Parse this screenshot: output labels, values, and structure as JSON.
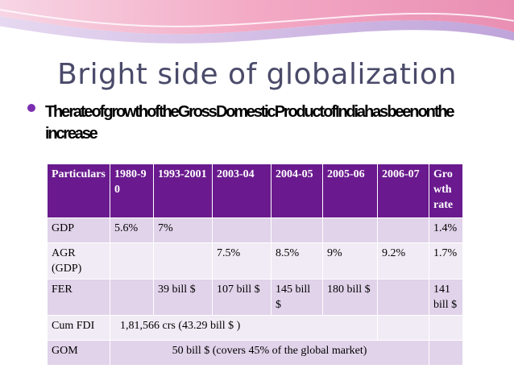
{
  "slide": {
    "title": "Bright side of globalization",
    "bullet": "The rate of growth of the Gross Domestic Product of India has been on the increase"
  },
  "table": {
    "headers": [
      "Particulars",
      "1980-90",
      "1993-2001",
      "2003-04",
      "2004-05",
      "2005-06",
      "2006-07",
      "Growth rate"
    ],
    "rows": [
      {
        "label": "GDP",
        "c1": "5.6%",
        "c2": "7%",
        "c3": "",
        "c4": "",
        "c5": "",
        "c6": "",
        "c7": "1.4%"
      },
      {
        "label": "AGR (GDP)",
        "c1": "",
        "c2": "",
        "c3": "7.5%",
        "c4": "8.5%",
        "c5": "9%",
        "c6": "9.2%",
        "c7": "1.7%"
      },
      {
        "label": "FER",
        "c1": "",
        "c2": "39 bill $",
        "c3": "107 bill $",
        "c4": "145 bill $",
        "c5": "180 bill $",
        "c6": "",
        "c7": "141 bill $"
      },
      {
        "label": "Cum FDI",
        "merged": "1,81,566 crs (43.29 bill $ )"
      },
      {
        "label": "GOM",
        "merged": "50 bill $ (covers 45% of the global market)"
      }
    ]
  },
  "colors": {
    "header_bg": "#6a1a8e",
    "row_odd": "#e1d3ea",
    "row_even": "#f1ebf5",
    "title": "#4a4a6a",
    "bullet": "#7b2fb0"
  }
}
